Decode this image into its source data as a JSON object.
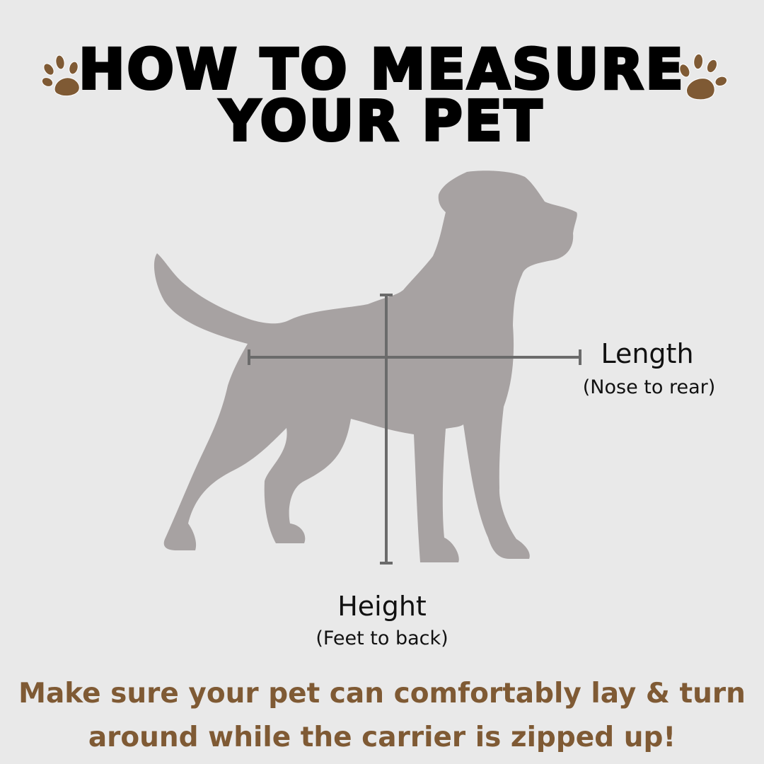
{
  "title": {
    "line1": "HOW TO MEASURE",
    "line2": "YOUR PET"
  },
  "labels": {
    "length": "Length",
    "length_desc": "(Nose to rear)",
    "height": "Height",
    "height_desc": "(Feet to back)"
  },
  "note": {
    "line1": "Make sure your pet can comfortably lay & turn",
    "line2": "around while the carrier is zipped up!"
  },
  "icons": {
    "left": "paw-print-icon",
    "right": "paw-print-icon"
  },
  "colors": {
    "background": "#e9e9e9",
    "silhouette": "#a7a2a2",
    "measure_line": "#6b6b6b",
    "accent": "#7f5a34",
    "title": "#000000"
  }
}
